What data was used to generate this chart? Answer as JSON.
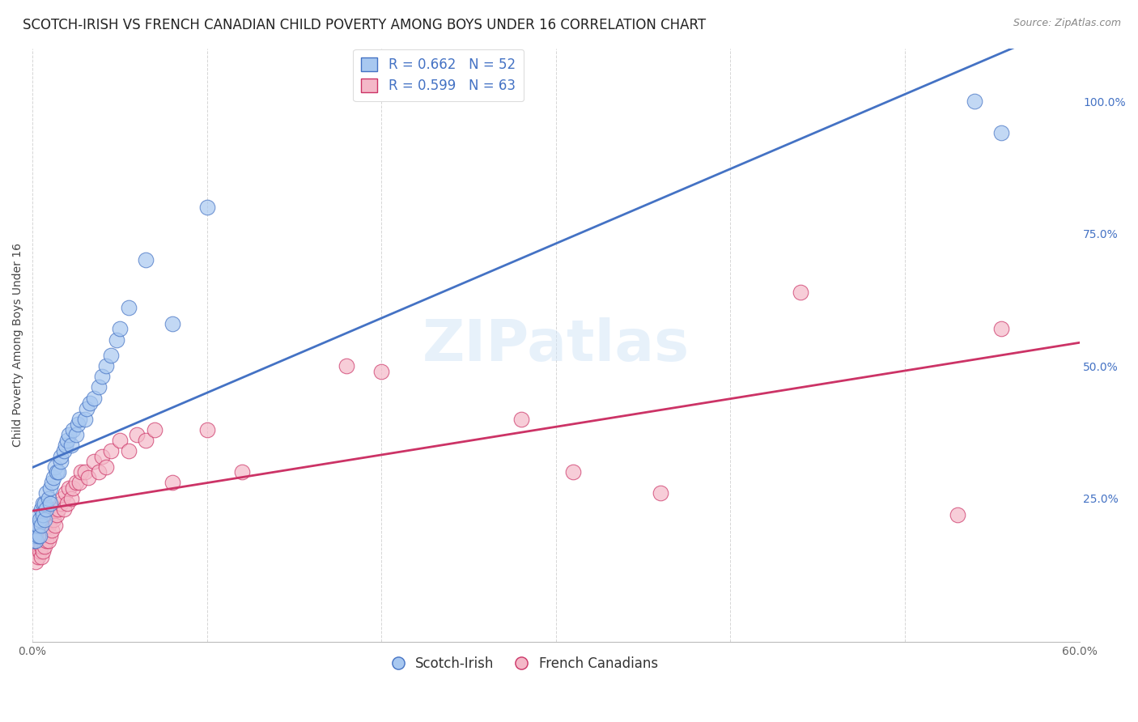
{
  "title": "SCOTCH-IRISH VS FRENCH CANADIAN CHILD POVERTY AMONG BOYS UNDER 16 CORRELATION CHART",
  "source": "Source: ZipAtlas.com",
  "ylabel": "Child Poverty Among Boys Under 16",
  "xlim": [
    0.0,
    0.6
  ],
  "ylim": [
    -0.02,
    1.1
  ],
  "ytick_right": [
    0.0,
    0.25,
    0.5,
    0.75,
    1.0
  ],
  "ytick_right_labels": [
    "",
    "25.0%",
    "50.0%",
    "75.0%",
    "100.0%"
  ],
  "blue_R": 0.662,
  "blue_N": 52,
  "pink_R": 0.599,
  "pink_N": 63,
  "blue_color": "#a8c8f0",
  "pink_color": "#f4b8c8",
  "blue_line_color": "#4472c4",
  "pink_line_color": "#cc3366",
  "watermark": "ZIPatlas",
  "scotch_irish_x": [
    0.001,
    0.001,
    0.002,
    0.002,
    0.003,
    0.003,
    0.003,
    0.004,
    0.004,
    0.005,
    0.005,
    0.006,
    0.006,
    0.007,
    0.007,
    0.008,
    0.008,
    0.009,
    0.01,
    0.01,
    0.011,
    0.012,
    0.013,
    0.014,
    0.015,
    0.016,
    0.016,
    0.018,
    0.019,
    0.02,
    0.021,
    0.022,
    0.023,
    0.025,
    0.026,
    0.027,
    0.03,
    0.031,
    0.033,
    0.035,
    0.038,
    0.04,
    0.042,
    0.045,
    0.048,
    0.05,
    0.055,
    0.065,
    0.08,
    0.1,
    0.54,
    0.555
  ],
  "scotch_irish_y": [
    0.17,
    0.18,
    0.17,
    0.2,
    0.18,
    0.2,
    0.22,
    0.18,
    0.21,
    0.2,
    0.23,
    0.22,
    0.24,
    0.21,
    0.24,
    0.23,
    0.26,
    0.25,
    0.24,
    0.27,
    0.28,
    0.29,
    0.31,
    0.3,
    0.3,
    0.32,
    0.33,
    0.34,
    0.35,
    0.36,
    0.37,
    0.35,
    0.38,
    0.37,
    0.39,
    0.4,
    0.4,
    0.42,
    0.43,
    0.44,
    0.46,
    0.48,
    0.5,
    0.52,
    0.55,
    0.57,
    0.61,
    0.7,
    0.58,
    0.8,
    1.0,
    0.94
  ],
  "french_canadian_x": [
    0.001,
    0.001,
    0.002,
    0.002,
    0.003,
    0.003,
    0.003,
    0.004,
    0.004,
    0.005,
    0.005,
    0.005,
    0.006,
    0.006,
    0.007,
    0.007,
    0.008,
    0.008,
    0.009,
    0.009,
    0.01,
    0.01,
    0.01,
    0.011,
    0.012,
    0.013,
    0.013,
    0.014,
    0.015,
    0.016,
    0.017,
    0.018,
    0.019,
    0.02,
    0.021,
    0.022,
    0.023,
    0.025,
    0.027,
    0.028,
    0.03,
    0.032,
    0.035,
    0.038,
    0.04,
    0.042,
    0.045,
    0.05,
    0.055,
    0.06,
    0.065,
    0.07,
    0.08,
    0.1,
    0.12,
    0.18,
    0.2,
    0.28,
    0.31,
    0.36,
    0.44,
    0.53,
    0.555
  ],
  "french_canadian_y": [
    0.15,
    0.17,
    0.13,
    0.16,
    0.14,
    0.17,
    0.19,
    0.15,
    0.18,
    0.14,
    0.16,
    0.19,
    0.15,
    0.18,
    0.16,
    0.2,
    0.17,
    0.21,
    0.17,
    0.2,
    0.18,
    0.21,
    0.23,
    0.19,
    0.21,
    0.2,
    0.23,
    0.22,
    0.23,
    0.24,
    0.25,
    0.23,
    0.26,
    0.24,
    0.27,
    0.25,
    0.27,
    0.28,
    0.28,
    0.3,
    0.3,
    0.29,
    0.32,
    0.3,
    0.33,
    0.31,
    0.34,
    0.36,
    0.34,
    0.37,
    0.36,
    0.38,
    0.28,
    0.38,
    0.3,
    0.5,
    0.49,
    0.4,
    0.3,
    0.26,
    0.64,
    0.22,
    0.57
  ],
  "title_fontsize": 12,
  "axis_label_fontsize": 10,
  "tick_fontsize": 10,
  "legend_fontsize": 12
}
